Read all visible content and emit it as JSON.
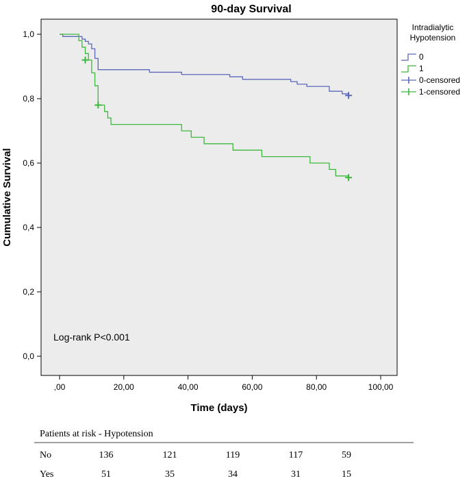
{
  "chart_data": {
    "type": "line",
    "title": "90-day Survival",
    "xlabel": "Time (days)",
    "ylabel": "Cumulative Survival",
    "xlim": [
      0,
      100
    ],
    "ylim": [
      0,
      1.05
    ],
    "x_ticks": [
      0,
      20,
      40,
      60,
      80,
      100
    ],
    "x_tick_labels": [
      ",00",
      "20,00",
      "40,00",
      "60,00",
      "80,00",
      "100,00"
    ],
    "y_ticks": [
      0,
      0.2,
      0.4,
      0.6,
      0.8,
      1.0
    ],
    "y_tick_labels": [
      "0,0",
      "0,2",
      "0,4",
      "0,6",
      "0,8",
      "1,0"
    ],
    "grid": false,
    "plot_background": "#ececec",
    "legend": {
      "title_lines": [
        "Intradialytic",
        "Hypotension"
      ],
      "placement": "right",
      "entries": [
        {
          "label": "0",
          "kind": "line",
          "color": "#5b67b9"
        },
        {
          "label": "1",
          "kind": "line",
          "color": "#3cb83c"
        },
        {
          "label": "0-censored",
          "kind": "censor",
          "color": "#5b67b9"
        },
        {
          "label": "1-censored",
          "kind": "censor",
          "color": "#3cb83c"
        }
      ]
    },
    "annotation": "Log-rank P<0.001",
    "series": [
      {
        "name": "0",
        "color": "#5b67b9",
        "steps": [
          [
            0,
            1.0
          ],
          [
            1,
            0.993
          ],
          [
            7,
            0.985
          ],
          [
            8,
            0.978
          ],
          [
            9,
            0.97
          ],
          [
            10,
            0.955
          ],
          [
            11,
            0.925
          ],
          [
            12,
            0.89
          ],
          [
            28,
            0.882
          ],
          [
            38,
            0.875
          ],
          [
            53,
            0.868
          ],
          [
            57,
            0.86
          ],
          [
            72,
            0.853
          ],
          [
            74,
            0.845
          ],
          [
            77,
            0.838
          ],
          [
            84,
            0.823
          ],
          [
            88,
            0.815
          ],
          [
            90,
            0.815
          ]
        ],
        "censored": [
          [
            90,
            0.81
          ]
        ]
      },
      {
        "name": "1",
        "color": "#3cb83c",
        "steps": [
          [
            0,
            1.0
          ],
          [
            6,
            0.98
          ],
          [
            7,
            0.96
          ],
          [
            8,
            0.94
          ],
          [
            9,
            0.92
          ],
          [
            10,
            0.88
          ],
          [
            11,
            0.84
          ],
          [
            12,
            0.78
          ],
          [
            13,
            0.78
          ],
          [
            14,
            0.76
          ],
          [
            15,
            0.74
          ],
          [
            16,
            0.72
          ],
          [
            38,
            0.7
          ],
          [
            41,
            0.68
          ],
          [
            45,
            0.66
          ],
          [
            54,
            0.64
          ],
          [
            63,
            0.62
          ],
          [
            78,
            0.6
          ],
          [
            84,
            0.58
          ],
          [
            86,
            0.56
          ],
          [
            90,
            0.56
          ]
        ],
        "censored": [
          [
            8,
            0.92
          ],
          [
            12,
            0.78
          ],
          [
            90,
            0.555
          ]
        ]
      }
    ]
  },
  "risk_table": {
    "title": "Patients at risk - Hypotension",
    "rows": [
      {
        "label": "No",
        "values": [
          "136",
          "121",
          "119",
          "117",
          "59"
        ]
      },
      {
        "label": "Yes",
        "values": [
          "51",
          "35",
          "34",
          "31",
          "15"
        ]
      }
    ]
  }
}
